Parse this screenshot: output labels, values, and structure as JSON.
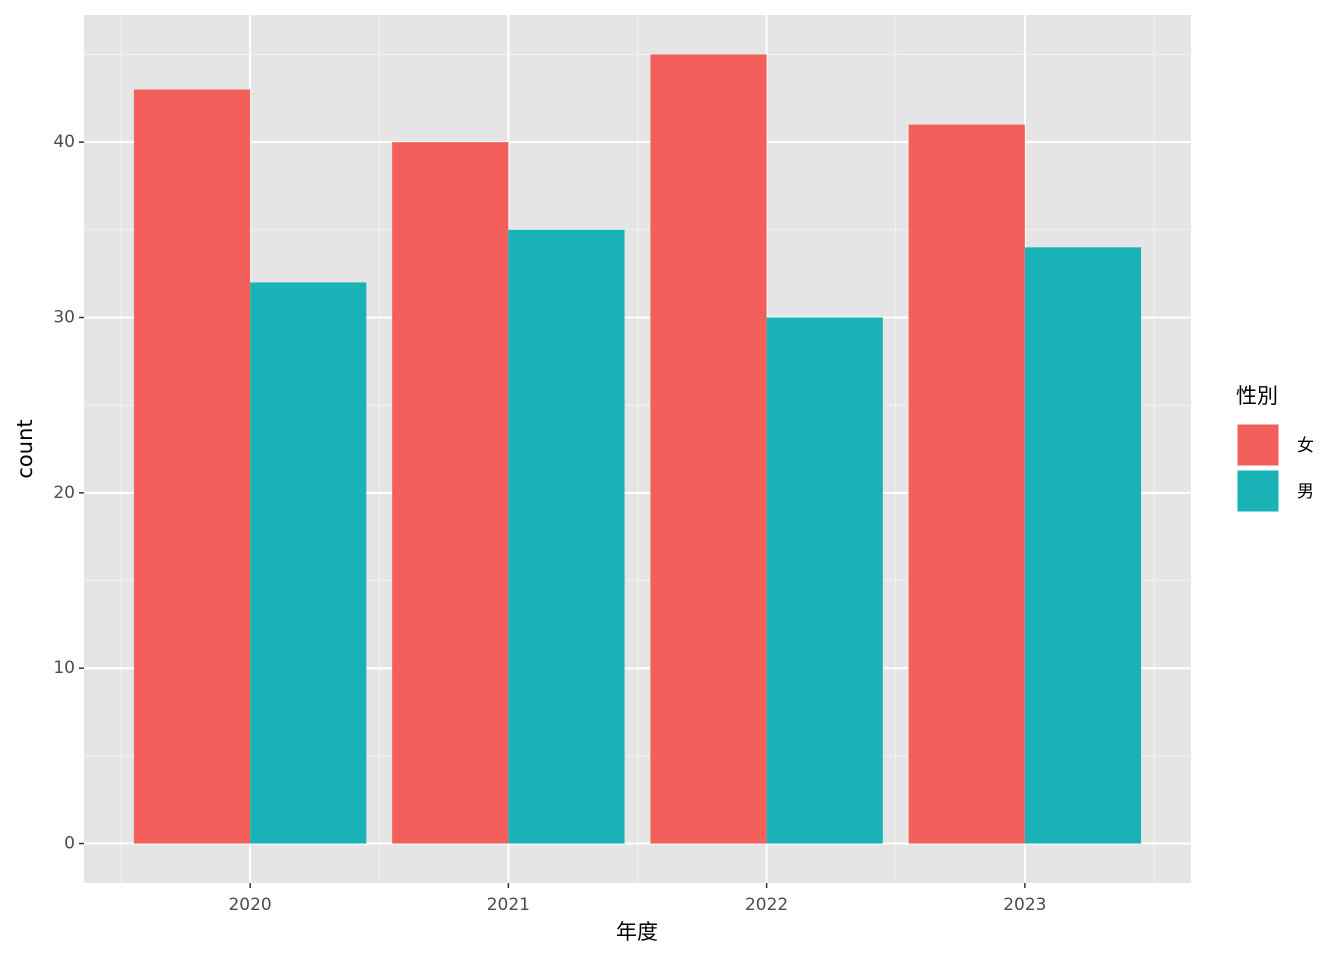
{
  "chart_data": {
    "type": "bar",
    "x_label": "年度",
    "y_label": "count",
    "legend_title": "性別",
    "categories": [
      "2020",
      "2021",
      "2022",
      "2023"
    ],
    "series": [
      {
        "name": "女",
        "color": "#f35f5a",
        "values": [
          43,
          40,
          45,
          41
        ]
      },
      {
        "name": "男",
        "color": "#19b3b7",
        "values": [
          32,
          35,
          30,
          34
        ]
      }
    ],
    "ylim": [
      -2.25,
      47.25
    ],
    "yticks": [
      0,
      10,
      20,
      30,
      40
    ],
    "grid": true,
    "legend": "right"
  }
}
